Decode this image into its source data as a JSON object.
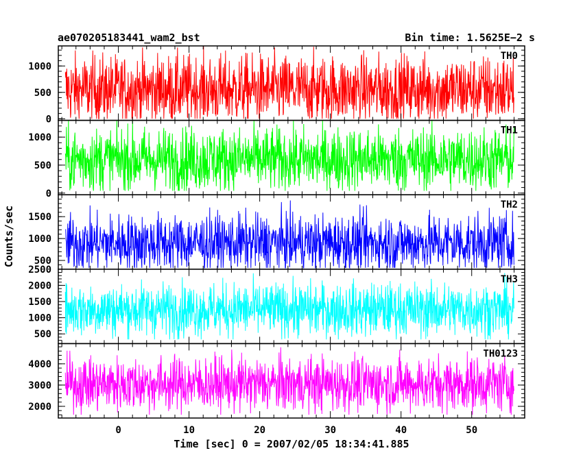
{
  "chart_data": {
    "type": "line",
    "title_left": "ae070205183441_wam2_bst",
    "title_right": "Bin time: 1.5625E−2 s",
    "xlabel": "Time [sec] 0 = 2007/02/05 18:34:41.885",
    "ylabel": "Counts/sec",
    "xlim": [
      -8.5,
      57.5
    ],
    "data_x_range": [
      -7.5,
      56
    ],
    "x_ticks": [
      0,
      10,
      20,
      30,
      40,
      50
    ],
    "x_tick_labels": [
      "0",
      "10",
      "20",
      "30",
      "40",
      "50"
    ],
    "grid": false,
    "panels": [
      {
        "name": "TH0",
        "color": "#ff0000",
        "ylim": [
          -30,
          1380
        ],
        "y_ticks": [
          0,
          500,
          1000
        ],
        "y_tick_labels": [
          "0",
          "500",
          "1000"
        ],
        "baseline": 550,
        "spread": 330,
        "ymin": 0,
        "ymax": 1380
      },
      {
        "name": "TH1",
        "color": "#00ff00",
        "ylim": [
          -30,
          1300
        ],
        "y_ticks": [
          0,
          500,
          1000
        ],
        "y_tick_labels": [
          "0",
          "500",
          "1000"
        ],
        "baseline": 600,
        "spread": 290,
        "ymin": 40,
        "ymax": 1300
      },
      {
        "name": "TH2",
        "color": "#0000ff",
        "ylim": [
          300,
          2000
        ],
        "y_ticks": [
          500,
          1000,
          1500
        ],
        "y_tick_labels": [
          "500",
          "1000",
          "1500"
        ],
        "baseline": 900,
        "spread": 330,
        "ymin": 330,
        "ymax": 1950
      },
      {
        "name": "TH3",
        "color": "#00ffff",
        "ylim": [
          200,
          2500
        ],
        "y_ticks": [
          500,
          1000,
          1500,
          2000,
          2500
        ],
        "y_tick_labels": [
          "500",
          "1000",
          "1500",
          "2000",
          "2500"
        ],
        "baseline": 1250,
        "spread": 420,
        "ymin": 330,
        "ymax": 2480
      },
      {
        "name": "TH0123",
        "color": "#ff00ff",
        "ylim": [
          1450,
          4950
        ],
        "y_ticks": [
          2000,
          3000,
          4000
        ],
        "y_tick_labels": [
          "2000",
          "3000",
          "4000"
        ],
        "baseline": 3050,
        "spread": 650,
        "ymin": 1600,
        "ymax": 4900
      }
    ]
  }
}
